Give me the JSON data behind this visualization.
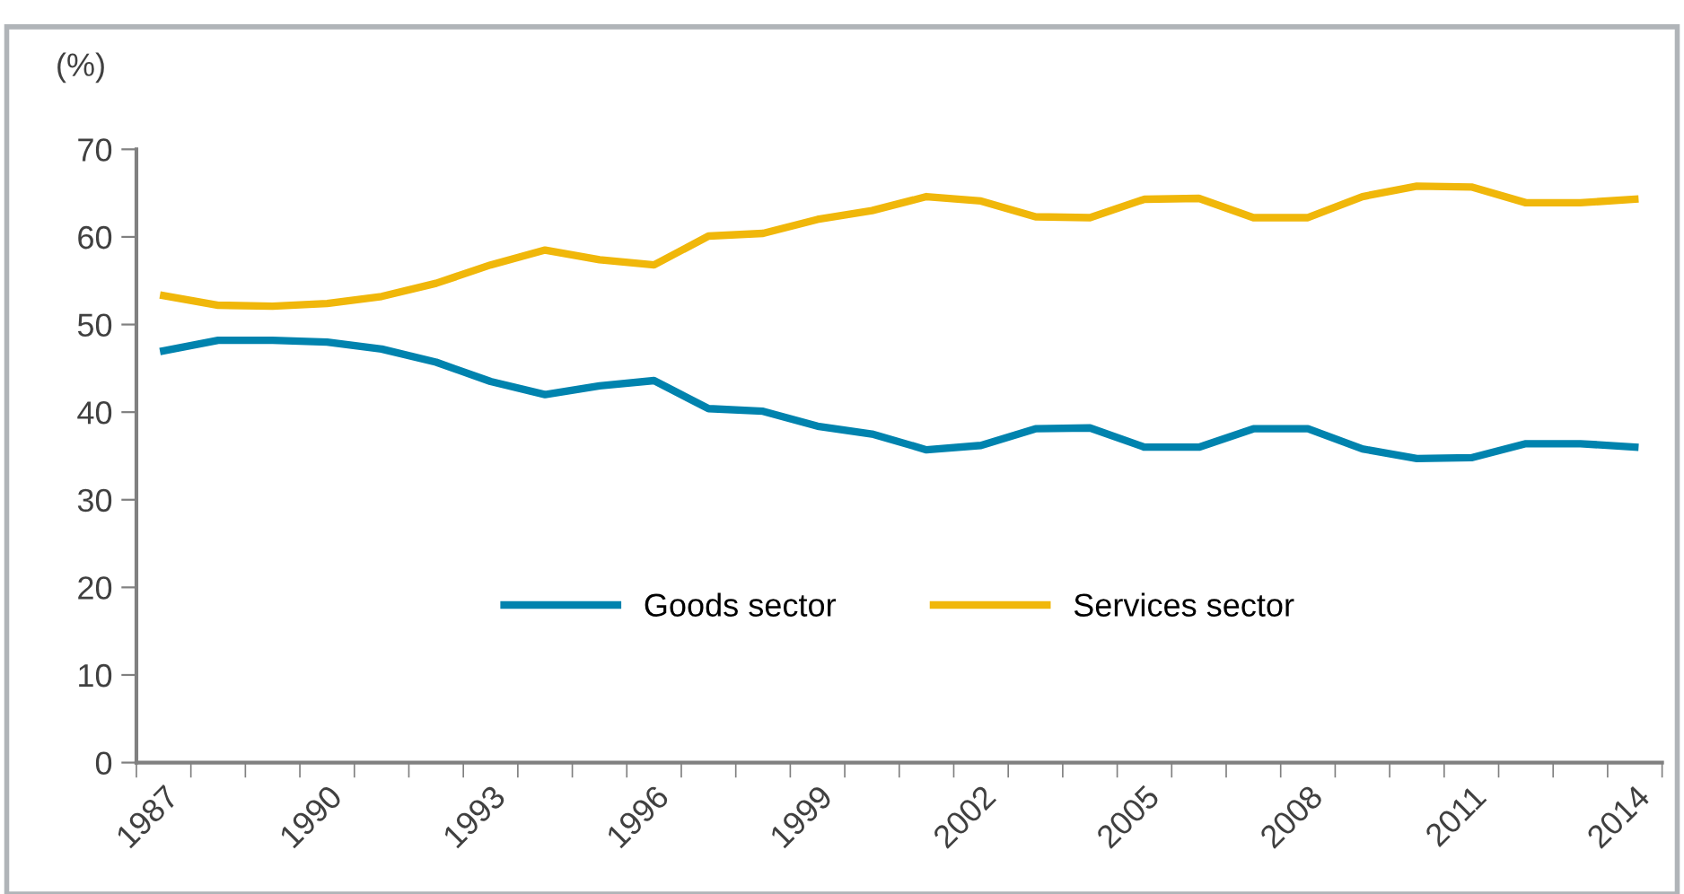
{
  "chart_data": {
    "type": "line",
    "ylabel": "(%)",
    "categories": [
      "1987",
      null,
      null,
      "1990",
      null,
      null,
      "1993",
      null,
      null,
      "1996",
      null,
      null,
      "1999",
      null,
      null,
      "2002",
      null,
      null,
      "2005",
      null,
      null,
      "2008",
      null,
      null,
      "2011",
      null,
      null,
      "2014"
    ],
    "series": [
      {
        "name": "Goods sector",
        "color": "#0083ae",
        "values": [
          47.0,
          48.2,
          48.2,
          48.0,
          47.2,
          45.7,
          43.5,
          42.0,
          43.0,
          43.6,
          40.4,
          40.1,
          38.4,
          37.5,
          35.7,
          36.2,
          38.1,
          38.2,
          36.0,
          36.0,
          38.1,
          38.1,
          35.8,
          34.7,
          34.8,
          36.4,
          36.4,
          36.0
        ]
      },
      {
        "name": "Services sector",
        "color": "#f0b70a",
        "values": [
          53.3,
          52.2,
          52.1,
          52.4,
          53.2,
          54.7,
          56.8,
          58.5,
          57.4,
          56.8,
          60.1,
          60.4,
          62.0,
          63.0,
          64.6,
          64.1,
          62.3,
          62.2,
          64.3,
          64.4,
          62.2,
          62.2,
          64.6,
          65.8,
          65.7,
          63.9,
          63.9,
          64.3
        ]
      }
    ],
    "ylim": [
      0,
      70
    ],
    "yticks": [
      0,
      10,
      20,
      30,
      40,
      50,
      60,
      70
    ],
    "grid": false,
    "legend": "bottom",
    "marker": "none",
    "line_style": "solid"
  }
}
